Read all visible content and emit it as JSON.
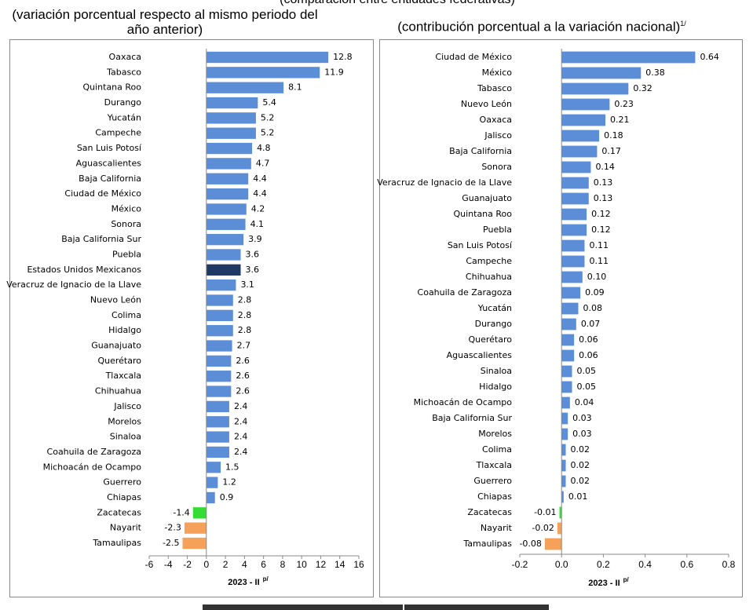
{
  "header": {
    "title": "(comparación entre entidades federativas)"
  },
  "chart_data": [
    {
      "type": "barh",
      "subtitle": "(variación porcentual respecto al mismo periodo del año anterior)",
      "xlabel": "2023 - II",
      "xlabel_sup": "p/",
      "categories": [
        "Oaxaca",
        "Tabasco",
        "Quintana Roo",
        "Durango",
        "Yucatán",
        "Campeche",
        "San Luis Potosí",
        "Aguascalientes",
        "Baja California",
        "Ciudad de México",
        "México",
        "Sonora",
        "Baja California Sur",
        "Puebla",
        "Estados Unidos Mexicanos",
        "Veracruz de Ignacio de la Llave",
        "Nuevo León",
        "Colima",
        "Hidalgo",
        "Guanajuato",
        "Querétaro",
        "Tlaxcala",
        "Chihuahua",
        "Jalisco",
        "Morelos",
        "Sinaloa",
        "Coahuila de Zaragoza",
        "Michoacán de Ocampo",
        "Guerrero",
        "Chiapas",
        "Zacatecas",
        "Nayarit",
        "Tamaulipas"
      ],
      "values": [
        12.8,
        11.9,
        8.1,
        5.4,
        5.2,
        5.2,
        4.8,
        4.7,
        4.4,
        4.4,
        4.2,
        4.1,
        3.9,
        3.6,
        3.6,
        3.1,
        2.8,
        2.8,
        2.8,
        2.7,
        2.6,
        2.6,
        2.6,
        2.4,
        2.4,
        2.4,
        2.4,
        1.5,
        1.2,
        0.9,
        -1.4,
        -2.3,
        -2.5
      ],
      "colors": [
        "#5b8ed6",
        "#5b8ed6",
        "#5b8ed6",
        "#5b8ed6",
        "#5b8ed6",
        "#5b8ed6",
        "#5b8ed6",
        "#5b8ed6",
        "#5b8ed6",
        "#5b8ed6",
        "#5b8ed6",
        "#5b8ed6",
        "#5b8ed6",
        "#5b8ed6",
        "#1f3864",
        "#5b8ed6",
        "#5b8ed6",
        "#5b8ed6",
        "#5b8ed6",
        "#5b8ed6",
        "#5b8ed6",
        "#5b8ed6",
        "#5b8ed6",
        "#5b8ed6",
        "#5b8ed6",
        "#5b8ed6",
        "#5b8ed6",
        "#5b8ed6",
        "#5b8ed6",
        "#5b8ed6",
        "#33dd33",
        "#f5a15a",
        "#f5a15a"
      ],
      "xlim": [
        -6,
        16
      ],
      "xticks": [
        -6,
        -4,
        -2,
        0,
        2,
        4,
        6,
        8,
        10,
        12,
        14,
        16
      ]
    },
    {
      "type": "barh",
      "subtitle": "(contribución porcentual a la variación nacional)",
      "subtitle_note": "1/",
      "xlabel": "2023 - II",
      "xlabel_sup": "p/",
      "categories": [
        "Ciudad de México",
        "México",
        "Tabasco",
        "Nuevo León",
        "Oaxaca",
        "Jalisco",
        "Baja California",
        "Sonora",
        "Veracruz de Ignacio de la Llave",
        "Guanajuato",
        "Quintana Roo",
        "Puebla",
        "San Luis Potosí",
        "Campeche",
        "Chihuahua",
        "Coahuila de Zaragoza",
        "Yucatán",
        "Durango",
        "Querétaro",
        "Aguascalientes",
        "Sinaloa",
        "Hidalgo",
        "Michoacán de Ocampo",
        "Baja California Sur",
        "Morelos",
        "Colima",
        "Tlaxcala",
        "Guerrero",
        "Chiapas",
        "Zacatecas",
        "Nayarit",
        "Tamaulipas"
      ],
      "values": [
        0.64,
        0.38,
        0.32,
        0.23,
        0.21,
        0.18,
        0.17,
        0.14,
        0.13,
        0.13,
        0.12,
        0.12,
        0.11,
        0.11,
        0.1,
        0.09,
        0.08,
        0.07,
        0.06,
        0.06,
        0.05,
        0.05,
        0.04,
        0.03,
        0.03,
        0.02,
        0.02,
        0.02,
        0.01,
        -0.01,
        -0.02,
        -0.08
      ],
      "value_labels": [
        "0.64",
        "0.38",
        "0.32",
        "0.23",
        "0.21",
        "0.18",
        "0.17",
        "0.14",
        "0.13",
        "0.13",
        "0.12",
        "0.12",
        "0.11",
        "0.11",
        "0.10",
        "0.09",
        "0.08",
        "0.07",
        "0.06",
        "0.06",
        "0.05",
        "0.05",
        "0.04",
        "0.03",
        "0.03",
        "0.02",
        "0.02",
        "0.02",
        "0.01",
        "-0.01",
        "-0.02",
        "-0.08"
      ],
      "colors": [
        "#5b8ed6",
        "#5b8ed6",
        "#5b8ed6",
        "#5b8ed6",
        "#5b8ed6",
        "#5b8ed6",
        "#5b8ed6",
        "#5b8ed6",
        "#5b8ed6",
        "#5b8ed6",
        "#5b8ed6",
        "#5b8ed6",
        "#5b8ed6",
        "#5b8ed6",
        "#5b8ed6",
        "#5b8ed6",
        "#5b8ed6",
        "#5b8ed6",
        "#5b8ed6",
        "#5b8ed6",
        "#5b8ed6",
        "#5b8ed6",
        "#5b8ed6",
        "#5b8ed6",
        "#5b8ed6",
        "#5b8ed6",
        "#5b8ed6",
        "#5b8ed6",
        "#5b8ed6",
        "#33dd33",
        "#f5a15a",
        "#f5a15a"
      ],
      "xlim": [
        -0.2,
        0.8
      ],
      "xticks": [
        -0.2,
        {
          "value": 0,
          "label": "0.0"
        },
        0.2,
        0.4,
        0.6,
        0.8
      ]
    }
  ]
}
